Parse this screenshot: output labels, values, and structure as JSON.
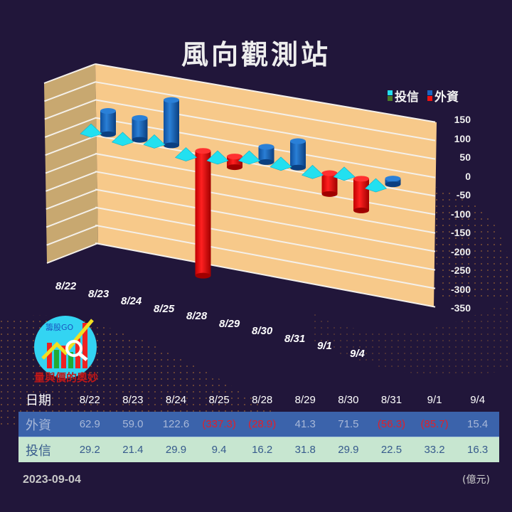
{
  "header": {
    "title": "風向觀測站"
  },
  "legend": [
    {
      "label": "投信",
      "colors": [
        "#22e0f0",
        "#4a7a2a"
      ]
    },
    {
      "label": "外資",
      "colors": [
        "#1a66c0",
        "#ee1111"
      ]
    }
  ],
  "colors": {
    "background": "#21163a",
    "wall": "#f7c98a",
    "side_wall": "#c8a870",
    "foreign_pos": "#1a66c0",
    "foreign_neg": "#ee1111",
    "trust": "#22e0f0",
    "table_foreign": "#3b63ab",
    "table_trust": "#c7e6d0"
  },
  "chart_data": {
    "type": "bar",
    "title": "風向觀測站",
    "categories": [
      "8/22",
      "8/23",
      "8/24",
      "8/25",
      "8/28",
      "8/29",
      "8/30",
      "8/31",
      "9/1",
      "9/4"
    ],
    "series": [
      {
        "name": "外資",
        "values": [
          62.9,
          59.0,
          122.6,
          -337.3,
          -28.9,
          41.3,
          71.5,
          -56.3,
          -85.7,
          15.4
        ],
        "style": "cylinder"
      },
      {
        "name": "投信",
        "values": [
          29.2,
          21.4,
          29.9,
          9.4,
          16.2,
          31.8,
          29.9,
          22.5,
          33.2,
          16.3
        ],
        "style": "pyramid"
      }
    ],
    "yticks": [
      150,
      100,
      50,
      0,
      -50,
      -100,
      -150,
      -200,
      -250,
      -300,
      -350
    ],
    "ylim": [
      -350,
      150
    ],
    "ylabel": "",
    "unit": "(億元)",
    "legend_position": "top-right",
    "grid": true
  },
  "table": {
    "header_label": "日期",
    "dates": [
      "8/22",
      "8/23",
      "8/24",
      "8/25",
      "8/28",
      "8/29",
      "8/30",
      "8/31",
      "9/1",
      "9/4"
    ],
    "rows": [
      {
        "label": "外資",
        "cells": [
          "62.9",
          "59.0",
          "122.6",
          "(337.3)",
          "(28.9)",
          "41.3",
          "71.5",
          "(56.3)",
          "(85.7)",
          "15.4"
        ]
      },
      {
        "label": "投信",
        "cells": [
          "29.2",
          "21.4",
          "29.9",
          "9.4",
          "16.2",
          "31.8",
          "29.9",
          "22.5",
          "33.2",
          "16.3"
        ]
      }
    ]
  },
  "logo": {
    "brand": "籌股GO",
    "tagline": "量與價的奧妙"
  },
  "footer": {
    "date": "2023-09-04",
    "unit": "(億元)"
  }
}
